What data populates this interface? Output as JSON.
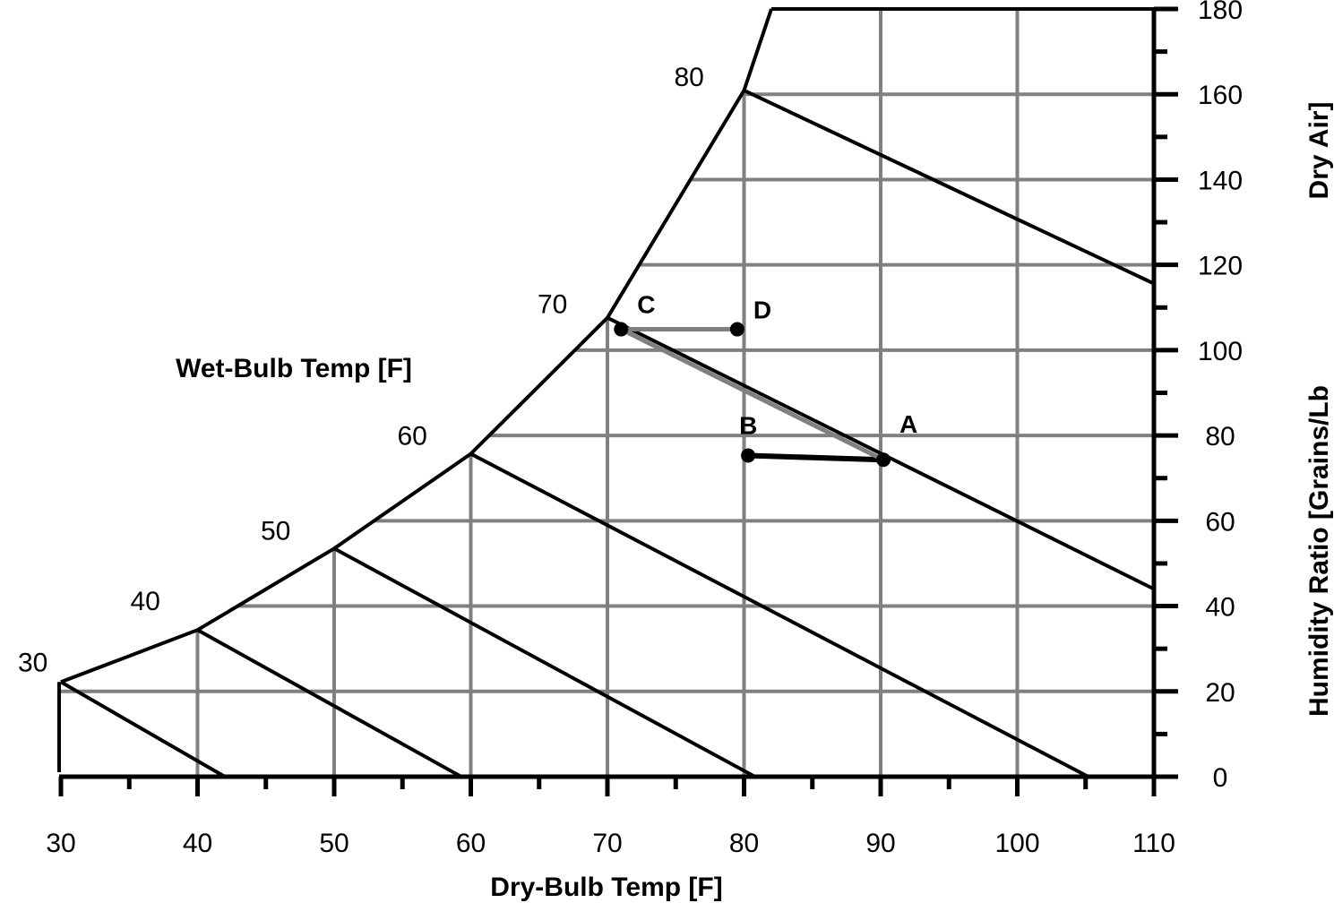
{
  "chart_data": {
    "type": "line",
    "xlabel": "Dry-Bulb Temp [F]",
    "ylabel": "Humidity Ratio [Grains/Lb Dry Air]",
    "ylabel_parts": [
      "Humidity Ratio [Grains/Lb",
      "Dry Air]"
    ],
    "wetbulb_label": "Wet-Bulb Temp [F]",
    "xlim": [
      30,
      110
    ],
    "ylim": [
      0,
      180
    ],
    "x_ticks": [
      "30",
      "40",
      "50",
      "60",
      "70",
      "80",
      "90",
      "100",
      "110"
    ],
    "y_ticks": [
      "0",
      "20",
      "40",
      "60",
      "80",
      "100",
      "120",
      "140",
      "160",
      "180"
    ],
    "grid": true,
    "colors": {
      "grid": "#808080",
      "lines": "#000000",
      "process_gray": "#808080"
    },
    "saturation_curve": [
      [
        30,
        22.2
      ],
      [
        40,
        34.4
      ],
      [
        50,
        53.5
      ],
      [
        60,
        75.7
      ],
      [
        70,
        107.6
      ],
      [
        80,
        160.9
      ],
      [
        82,
        180
      ]
    ],
    "wet_bulb_lines": [
      {
        "label": "30",
        "from": [
          30,
          22.2
        ],
        "to": [
          42,
          0
        ]
      },
      {
        "label": "40",
        "from": [
          40,
          34.4
        ],
        "to": [
          59.3,
          0
        ]
      },
      {
        "label": "50",
        "from": [
          50,
          53.5
        ],
        "to": [
          80.8,
          0
        ]
      },
      {
        "label": "60",
        "from": [
          60,
          75.7
        ],
        "to": [
          105.2,
          0
        ]
      },
      {
        "label": "70",
        "from": [
          70,
          107.6
        ],
        "to": [
          110,
          44
        ]
      },
      {
        "label": "80",
        "from": [
          80,
          160.9
        ],
        "to": [
          110,
          115.6
        ]
      }
    ],
    "points": [
      {
        "label": "A",
        "x": 90.2,
        "y": 74.3
      },
      {
        "label": "B",
        "x": 80.3,
        "y": 75.3
      },
      {
        "label": "C",
        "x": 71.0,
        "y": 104.9
      },
      {
        "label": "D",
        "x": 79.5,
        "y": 104.9
      }
    ],
    "process_segments": [
      {
        "from": "A",
        "to": "B",
        "color": "#000000"
      },
      {
        "from": "A",
        "to": "C",
        "color": "#808080"
      },
      {
        "from": "C",
        "to": "D",
        "color": "#808080"
      }
    ]
  }
}
